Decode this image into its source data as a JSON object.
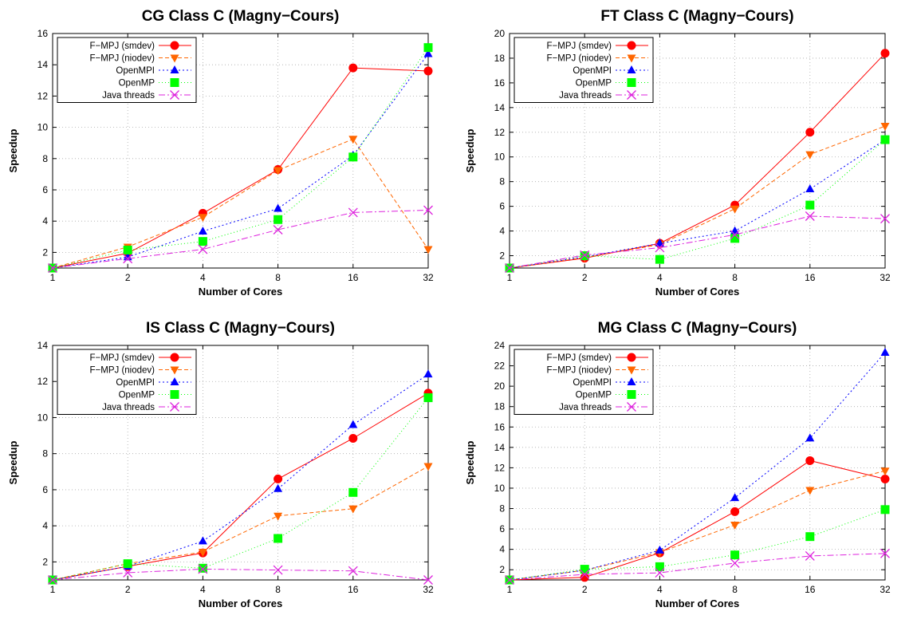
{
  "colors": {
    "smdev": "#ff0000",
    "niodev": "#ff6600",
    "openmpi": "#0000ff",
    "openmp": "#00ff00",
    "java": "#dd22dd",
    "grid": "#aaaaaa"
  },
  "chart_data": [
    {
      "type": "line",
      "title": "CG Class C (Magny−Cours)",
      "xlabel": "Number of Cores",
      "ylabel": "Speedup",
      "x": [
        1,
        2,
        4,
        8,
        16,
        32
      ],
      "x_scale": "log2",
      "ylim": [
        1,
        16
      ],
      "yticks": [
        2,
        4,
        6,
        8,
        10,
        12,
        14,
        16
      ],
      "grid": true,
      "legend_position": "top-left",
      "series": [
        {
          "name": "F−MPJ (smdev)",
          "values": [
            1,
            1.95,
            4.5,
            7.3,
            13.8,
            13.6
          ]
        },
        {
          "name": "F−MPJ (niodev)",
          "values": [
            1,
            2.35,
            4.25,
            7.25,
            9.25,
            2.2
          ]
        },
        {
          "name": "OpenMPI",
          "values": [
            1,
            1.7,
            3.35,
            4.8,
            8.2,
            14.7
          ]
        },
        {
          "name": "OpenMP",
          "values": [
            1,
            2.15,
            2.7,
            4.1,
            8.1,
            15.1
          ]
        },
        {
          "name": "Java threads",
          "values": [
            1,
            1.6,
            2.2,
            3.45,
            4.55,
            4.7
          ]
        }
      ]
    },
    {
      "type": "line",
      "title": "FT Class C (Magny−Cours)",
      "xlabel": "Number of Cores",
      "ylabel": "Speedup",
      "x": [
        1,
        2,
        4,
        8,
        16,
        32
      ],
      "x_scale": "log2",
      "ylim": [
        1,
        20
      ],
      "yticks": [
        2,
        4,
        6,
        8,
        10,
        12,
        14,
        16,
        18,
        20
      ],
      "grid": true,
      "legend_position": "top-left",
      "series": [
        {
          "name": "F−MPJ (smdev)",
          "values": [
            1,
            1.8,
            3.0,
            6.1,
            12.0,
            18.4
          ]
        },
        {
          "name": "F−MPJ (niodev)",
          "values": [
            1,
            1.85,
            2.9,
            5.8,
            10.2,
            12.5
          ]
        },
        {
          "name": "OpenMPI",
          "values": [
            1,
            1.9,
            3.0,
            4.0,
            7.4,
            11.4
          ]
        },
        {
          "name": "OpenMP",
          "values": [
            1,
            2.0,
            1.7,
            3.4,
            6.1,
            11.4
          ]
        },
        {
          "name": "Java threads",
          "values": [
            1,
            2.05,
            2.65,
            3.7,
            5.2,
            5.0
          ]
        }
      ]
    },
    {
      "type": "line",
      "title": "IS Class C (Magny−Cours)",
      "xlabel": "Number of Cores",
      "ylabel": "Speedup",
      "x": [
        1,
        2,
        4,
        8,
        16,
        32
      ],
      "x_scale": "log2",
      "ylim": [
        1,
        14
      ],
      "yticks": [
        2,
        4,
        6,
        8,
        10,
        12,
        14
      ],
      "grid": true,
      "legend_position": "top-left",
      "series": [
        {
          "name": "F−MPJ (smdev)",
          "values": [
            1,
            1.75,
            2.5,
            6.6,
            8.85,
            11.35
          ]
        },
        {
          "name": "F−MPJ (niodev)",
          "values": [
            1,
            1.9,
            2.55,
            4.55,
            4.95,
            7.3
          ]
        },
        {
          "name": "OpenMPI",
          "values": [
            1,
            1.75,
            3.15,
            6.05,
            9.6,
            12.4
          ]
        },
        {
          "name": "OpenMP",
          "values": [
            1,
            1.9,
            1.65,
            3.3,
            5.85,
            11.1
          ]
        },
        {
          "name": "Java threads",
          "values": [
            1,
            1.4,
            1.6,
            1.55,
            1.5,
            1.0
          ]
        }
      ]
    },
    {
      "type": "line",
      "title": "MG Class C (Magny−Cours)",
      "xlabel": "Number of Cores",
      "ylabel": "Speedup",
      "x": [
        1,
        2,
        4,
        8,
        16,
        32
      ],
      "x_scale": "log2",
      "ylim": [
        1,
        24
      ],
      "yticks": [
        2,
        4,
        6,
        8,
        10,
        12,
        14,
        16,
        18,
        20,
        22,
        24
      ],
      "grid": true,
      "legend_position": "top-left",
      "series": [
        {
          "name": "F−MPJ (smdev)",
          "values": [
            1,
            1.25,
            3.65,
            7.7,
            12.7,
            10.9
          ]
        },
        {
          "name": "F−MPJ (niodev)",
          "values": [
            1,
            1.95,
            3.7,
            6.4,
            9.8,
            11.7
          ]
        },
        {
          "name": "OpenMPI",
          "values": [
            1,
            1.95,
            3.9,
            9.05,
            14.9,
            23.3
          ]
        },
        {
          "name": "OpenMP",
          "values": [
            1,
            2.05,
            2.3,
            3.45,
            5.25,
            7.9
          ]
        },
        {
          "name": "Java threads",
          "values": [
            1,
            1.55,
            1.7,
            2.65,
            3.35,
            3.6
          ]
        }
      ]
    }
  ]
}
